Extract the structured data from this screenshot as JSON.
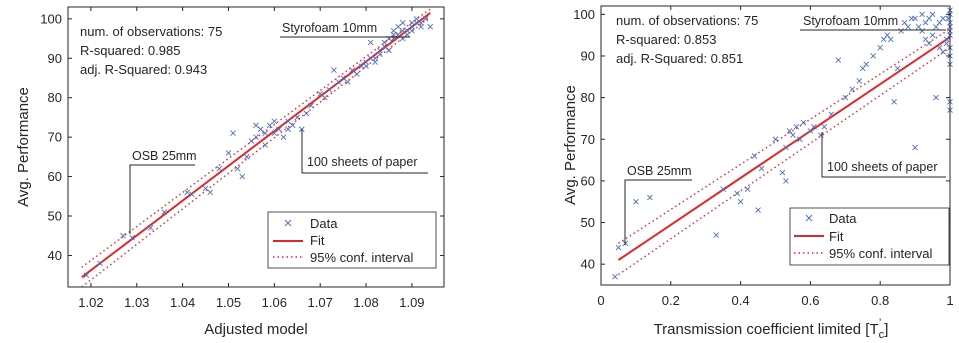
{
  "colors": {
    "data": "#4a6fc2",
    "fit": "#e3262b",
    "axis": "#262626"
  },
  "chart_data": [
    {
      "type": "scatter",
      "xlabel": "Adjusted model",
      "ylabel": "Avg. Performance",
      "xlim": [
        1.015,
        1.097
      ],
      "ylim": [
        32,
        103
      ],
      "xticks": [
        1.02,
        1.03,
        1.04,
        1.05,
        1.06,
        1.07,
        1.08,
        1.09
      ],
      "xtick_labels": [
        "1.02",
        "1.03",
        "1.04",
        "1.05",
        "1.06",
        "1.07",
        "1.08",
        "1.09"
      ],
      "yticks": [
        40,
        50,
        60,
        70,
        80,
        90,
        100
      ],
      "ytick_labels": [
        "40",
        "50",
        "60",
        "70",
        "80",
        "90",
        "100"
      ],
      "stats": [
        "num. of observations: 75",
        "R-squared: 0.985",
        "adj. R-Squared: 0.943"
      ],
      "annotations": [
        {
          "text": "Styrofoam 10mm",
          "x": 1.087,
          "y": 97
        },
        {
          "text": "OSB 25mm",
          "x": 1.029,
          "y": 44
        },
        {
          "text": "100 sheets of paper",
          "x": 1.066,
          "y": 73
        }
      ],
      "legend": {
        "entries": [
          "Data",
          "Fit",
          "95% conf. interval"
        ],
        "location": "bottom-right"
      },
      "fit": {
        "x": [
          1.018,
          1.094
        ],
        "y": [
          34.5,
          101.5
        ]
      },
      "ci_upper": {
        "x": [
          1.018,
          1.094
        ],
        "y": [
          37,
          102.5
        ]
      },
      "ci_lower": {
        "x": [
          1.018,
          1.094
        ],
        "y": [
          32,
          100.5
        ]
      },
      "series": [
        {
          "name": "Data",
          "x": [
            1.019,
            1.022,
            1.027,
            1.029,
            1.033,
            1.036,
            1.041,
            1.042,
            1.045,
            1.046,
            1.048,
            1.05,
            1.051,
            1.052,
            1.053,
            1.054,
            1.055,
            1.056,
            1.056,
            1.057,
            1.058,
            1.058,
            1.059,
            1.06,
            1.06,
            1.061,
            1.062,
            1.063,
            1.063,
            1.064,
            1.065,
            1.066,
            1.067,
            1.068,
            1.07,
            1.071,
            1.072,
            1.073,
            1.074,
            1.075,
            1.076,
            1.077,
            1.078,
            1.079,
            1.08,
            1.08,
            1.081,
            1.081,
            1.082,
            1.082,
            1.083,
            1.083,
            1.084,
            1.084,
            1.085,
            1.085,
            1.086,
            1.086,
            1.086,
            1.087,
            1.087,
            1.088,
            1.088,
            1.088,
            1.089,
            1.089,
            1.09,
            1.09,
            1.09,
            1.091,
            1.091,
            1.092,
            1.092,
            1.093,
            1.094
          ],
          "y": [
            35,
            38,
            45,
            44.5,
            47,
            51,
            56,
            55.5,
            57,
            56,
            62,
            66,
            71,
            62,
            60,
            65,
            69,
            73,
            70,
            72,
            71,
            68,
            73,
            71,
            74,
            72,
            70,
            72,
            74,
            73,
            75,
            72,
            76,
            78,
            81,
            80,
            82,
            87,
            84,
            85,
            84,
            87,
            86,
            88,
            88,
            89,
            90,
            94,
            90,
            89,
            91,
            92,
            93,
            94,
            92,
            95,
            95,
            96,
            97,
            96,
            98,
            97,
            95,
            99,
            97,
            96,
            98,
            99,
            97,
            99,
            100,
            98,
            99,
            100,
            98
          ]
        }
      ]
    },
    {
      "type": "scatter",
      "xlabel": "Transmission coefficient limited [T",
      "xlabel_symbol": "c",
      "xlabel_prime": "'",
      "xlabel_close": "]",
      "ylabel": "Avg. Performance",
      "xlim": [
        0,
        1
      ],
      "ylim": [
        35,
        102
      ],
      "xticks": [
        0,
        0.2,
        0.4,
        0.6,
        0.8,
        1
      ],
      "xtick_labels": [
        "0",
        "0.2",
        "0.4",
        "0.6",
        "0.8",
        "1"
      ],
      "yticks": [
        40,
        50,
        60,
        70,
        80,
        90,
        100
      ],
      "ytick_labels": [
        "40",
        "50",
        "60",
        "70",
        "80",
        "90",
        "100"
      ],
      "stats": [
        "num. of observations: 75",
        "R-squared: 0.853",
        "adj. R-Squared: 0.851"
      ],
      "annotations": [
        {
          "text": "Styrofoam 10mm",
          "x": 0.88,
          "y": 97
        },
        {
          "text": "OSB 25mm",
          "x": 0.07,
          "y": 45
        },
        {
          "text": "100 sheets of paper",
          "x": 0.62,
          "y": 72
        }
      ],
      "legend": {
        "entries": [
          "Data",
          "Fit",
          "95% conf. interval"
        ],
        "location": "bottom-right"
      },
      "fit": {
        "x": [
          0.05,
          1.0
        ],
        "y": [
          41,
          94.5
        ]
      },
      "ci_upper": {
        "x": [
          0.05,
          1.0
        ],
        "y": [
          45,
          96.5
        ]
      },
      "ci_lower": {
        "x": [
          0.05,
          1.0
        ],
        "y": [
          37.5,
          92
        ]
      },
      "series": [
        {
          "name": "Data",
          "x": [
            0.04,
            0.05,
            0.07,
            0.1,
            0.14,
            0.33,
            0.35,
            0.39,
            0.4,
            0.42,
            0.44,
            0.45,
            0.46,
            0.5,
            0.52,
            0.53,
            0.53,
            0.54,
            0.55,
            0.56,
            0.57,
            0.58,
            0.6,
            0.61,
            0.63,
            0.64,
            0.66,
            0.68,
            0.7,
            0.72,
            0.74,
            0.75,
            0.76,
            0.78,
            0.8,
            0.81,
            0.82,
            0.83,
            0.84,
            0.85,
            0.86,
            0.87,
            0.88,
            0.89,
            0.9,
            0.9,
            0.91,
            0.92,
            0.92,
            0.93,
            0.93,
            0.94,
            0.94,
            0.95,
            0.95,
            0.96,
            0.96,
            0.97,
            0.97,
            0.98,
            0.98,
            0.99,
            0.99,
            0.995,
            1.0,
            1.0,
            1.0,
            1.0,
            1.0,
            1.0,
            1.0,
            1.0,
            1.0,
            1.0,
            1.0
          ],
          "y": [
            37,
            44,
            45,
            55,
            56,
            47,
            58,
            57,
            55,
            58,
            66,
            53,
            63,
            70,
            62,
            60,
            68,
            72,
            71,
            73,
            70,
            74,
            72,
            73,
            71,
            73,
            76,
            89,
            80,
            82,
            84,
            87,
            88,
            90,
            92,
            94,
            95,
            94,
            79,
            87,
            96,
            98,
            97,
            99,
            99,
            68,
            97,
            96,
            100,
            94,
            98,
            99,
            93,
            95,
            100,
            97,
            80,
            98,
            92,
            99,
            91,
            93,
            94,
            99,
            100,
            98,
            97,
            95,
            92,
            90,
            88,
            79,
            77,
            101,
            96
          ]
        }
      ]
    }
  ]
}
